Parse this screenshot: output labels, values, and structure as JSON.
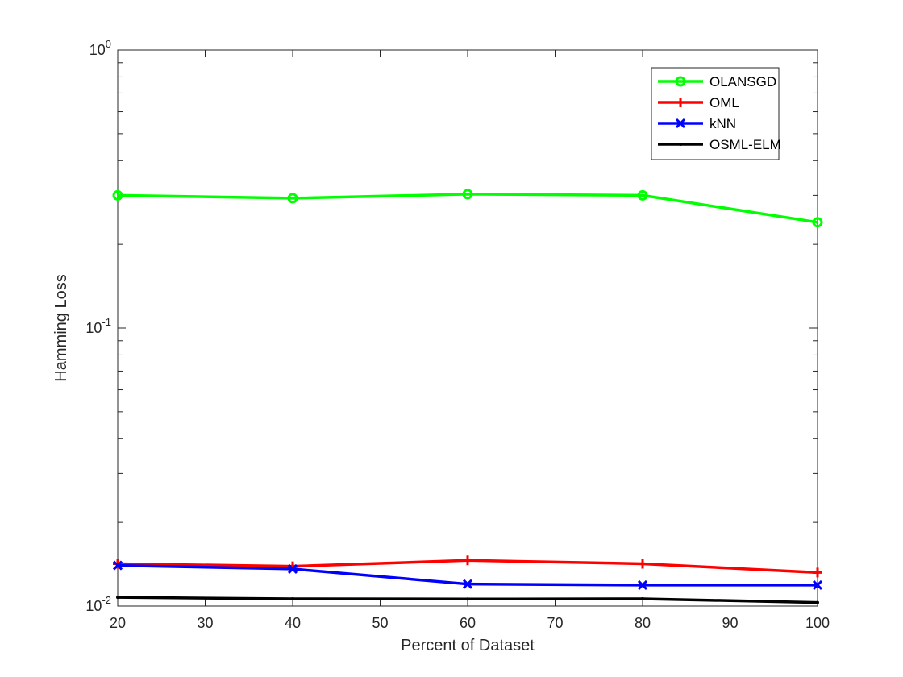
{
  "chart_data": {
    "type": "line",
    "title": "",
    "xlabel": "Percent of Dataset",
    "ylabel": "Hamming Loss",
    "x": [
      20,
      40,
      60,
      80,
      100
    ],
    "xlim": [
      20,
      100
    ],
    "ylim": [
      0.01,
      1
    ],
    "yscale": "log",
    "xticks": [
      "20",
      "30",
      "40",
      "50",
      "60",
      "70",
      "80",
      "90",
      "100"
    ],
    "yticks": [
      {
        "base": "10",
        "exp": "-2"
      },
      {
        "base": "10",
        "exp": "-1"
      },
      {
        "base": "10",
        "exp": "0"
      }
    ],
    "grid": false,
    "legend_position": "top-right",
    "series": [
      {
        "name": "OLANSGD",
        "values": [
          0.3,
          0.293,
          0.303,
          0.3,
          0.24
        ],
        "color": "#00ff00",
        "marker": "circle"
      },
      {
        "name": "OML",
        "values": [
          0.0142,
          0.0139,
          0.0146,
          0.0142,
          0.0132
        ],
        "color": "#ff0000",
        "marker": "plus"
      },
      {
        "name": "kNN",
        "values": [
          0.014,
          0.0136,
          0.012,
          0.0119,
          0.0119
        ],
        "color": "#0000ff",
        "marker": "x"
      },
      {
        "name": "OSML-ELM",
        "values": [
          0.01075,
          0.01062,
          0.0106,
          0.01062,
          0.0103
        ],
        "color": "#000000",
        "marker": "point"
      }
    ]
  }
}
